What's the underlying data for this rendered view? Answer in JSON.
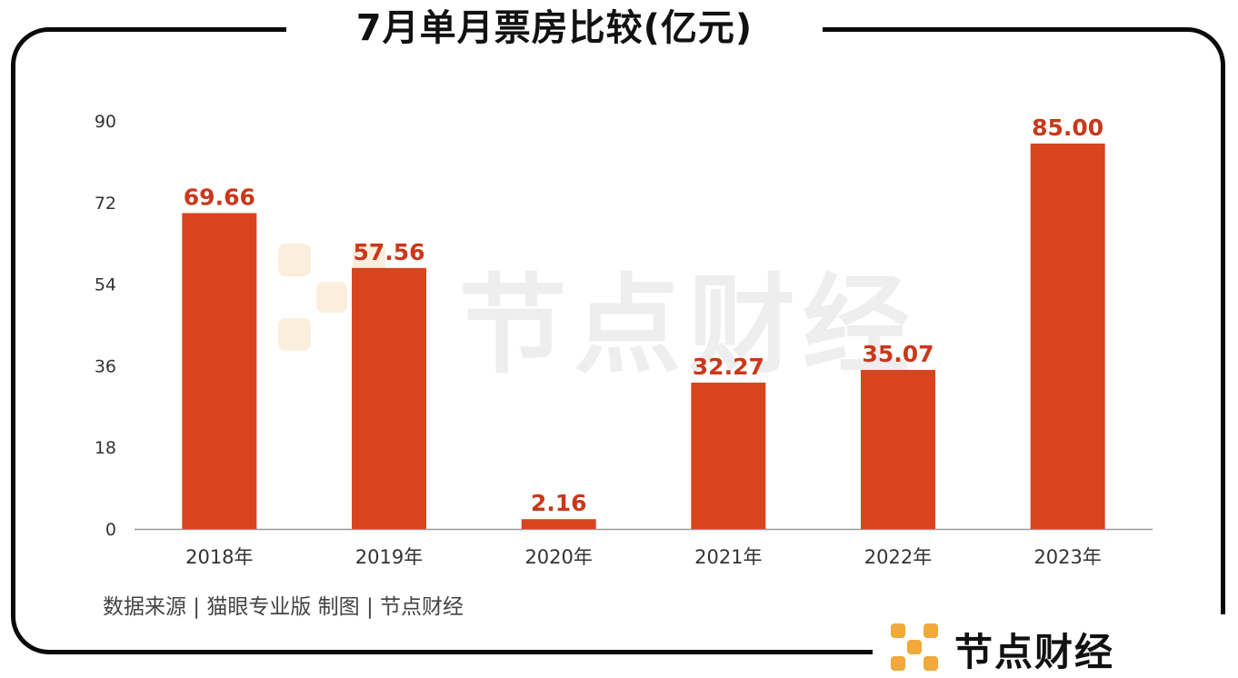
{
  "title": "7月单月票房比较(亿元)",
  "source_note": "数据来源 | 猫眼专业版  制图 | 节点财经",
  "watermark": "节点财经",
  "brand": "节点财经",
  "colors": {
    "bar": "#d9441e",
    "label": "#c9381a",
    "logo": "#f0a93a",
    "axis": "#999999",
    "text": "#333333"
  },
  "chart_data": {
    "type": "bar",
    "categories": [
      "2018年",
      "2019年",
      "2020年",
      "2021年",
      "2022年",
      "2023年"
    ],
    "values": [
      69.66,
      57.56,
      2.16,
      32.27,
      35.07,
      85.0
    ],
    "value_labels": [
      "69.66",
      "57.56",
      "2.16",
      "32.27",
      "35.07",
      "85.00"
    ],
    "ylim": [
      0,
      90
    ],
    "yticks": [
      "0",
      "18",
      "36",
      "54",
      "72",
      "90"
    ],
    "grid": false
  }
}
